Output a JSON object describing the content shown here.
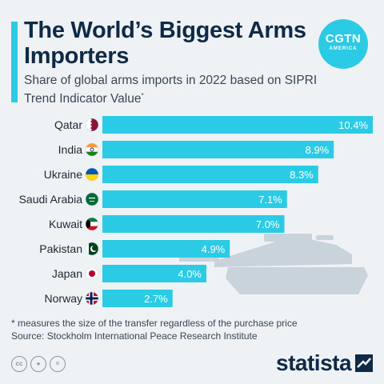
{
  "title": "The World’s Biggest Arms Importers",
  "subtitle": "Share of global arms imports in 2022 based on SIPRI Trend Indicator Value",
  "subtitle_mark": "*",
  "logo": {
    "line1": "CGTN",
    "line2": "AMERICA"
  },
  "footnote": "* measures the size of the transfer regardless of the purchase price",
  "source": "Source: Stockholm International Peace Research Institute",
  "license_icons": [
    "cc-icon",
    "person-icon",
    "equals-icon"
  ],
  "brand": "statista",
  "colors": {
    "bar": "#2bcbe6",
    "title": "#0e2a47",
    "accent": "#2bcbe6",
    "tank": "#c9d3dc"
  },
  "chart_data": {
    "type": "bar",
    "orientation": "horizontal",
    "categories": [
      "Qatar",
      "India",
      "Ukraine",
      "Saudi Arabia",
      "Kuwait",
      "Pakistan",
      "Japan",
      "Norway"
    ],
    "values": [
      10.4,
      8.9,
      8.3,
      7.1,
      7.0,
      4.9,
      4.0,
      2.7
    ],
    "value_labels": [
      "10.4%",
      "8.9%",
      "8.3%",
      "7.1%",
      "7.0%",
      "4.9%",
      "4.0%",
      "2.7%"
    ],
    "unit": "%",
    "xlim": [
      0,
      10.4
    ],
    "grid": false,
    "legend": "none"
  }
}
